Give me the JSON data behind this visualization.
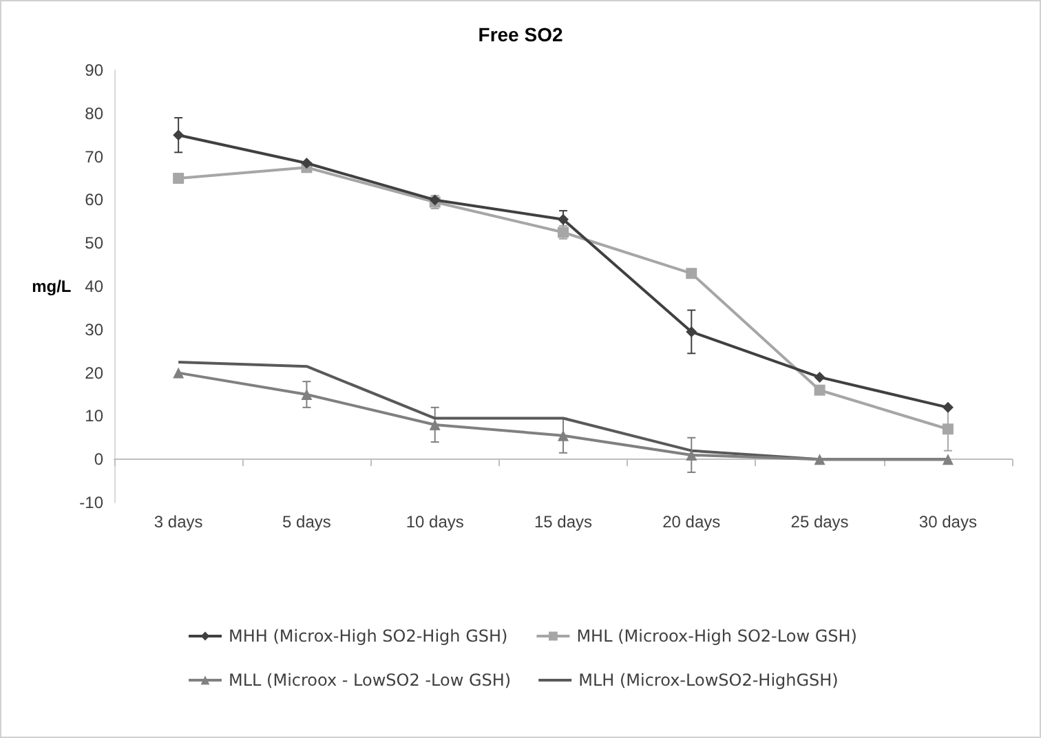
{
  "chart_data": {
    "type": "line",
    "title": "Free SO2",
    "ylabel": "mg/L",
    "categories": [
      "3 days",
      "5 days",
      "10 days",
      "15 days",
      "20 days",
      "25 days",
      "30 days"
    ],
    "series": [
      {
        "name": "MHH (Microx-High SO2-High GSH)",
        "color": "#404040",
        "marker": "diamond",
        "values": [
          75,
          68.5,
          60,
          55.5,
          29.5,
          19,
          12
        ],
        "errors": [
          4,
          null,
          null,
          2,
          5,
          null,
          null
        ]
      },
      {
        "name": "MHL (Microox-High SO2-Low GSH)",
        "color": "#a6a6a6",
        "marker": "square",
        "values": [
          65,
          67.5,
          59.5,
          52.5,
          43,
          16,
          7
        ],
        "errors": [
          null,
          1,
          1.5,
          1.5,
          null,
          null,
          5
        ]
      },
      {
        "name": "MLL (Microox - LowSO2 -Low GSH)",
        "color": "#808080",
        "marker": "triangle",
        "values": [
          20,
          15,
          8,
          5.5,
          1,
          0,
          0
        ],
        "errors": [
          null,
          3,
          4,
          4,
          4,
          null,
          null
        ]
      },
      {
        "name": "MLH (Microx-LowSO2-HighGSH)",
        "color": "#595959",
        "marker": "none",
        "values": [
          22.5,
          21.5,
          9.5,
          9.5,
          2,
          0,
          0
        ]
      }
    ],
    "ylim": [
      -10,
      90
    ],
    "yticks": [
      -10,
      0,
      10,
      20,
      30,
      40,
      50,
      60,
      70,
      80,
      90
    ],
    "legend": "bottom"
  }
}
